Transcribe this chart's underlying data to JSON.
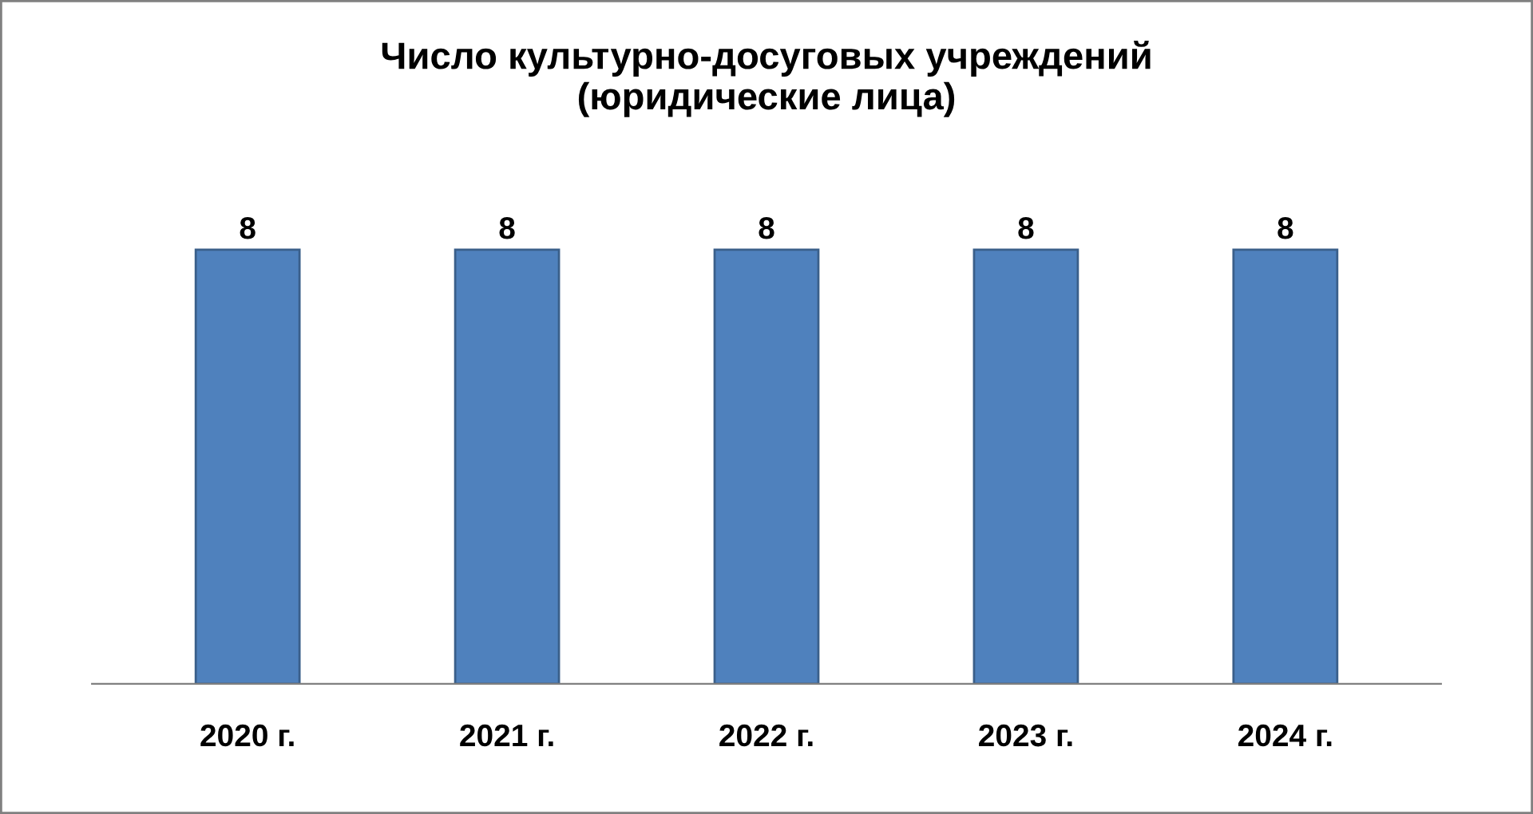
{
  "chart_data": {
    "type": "bar",
    "title": "Число культурно-досуговых учреждений\n(юридические лица)",
    "categories": [
      "2020 г.",
      "2021 г.",
      "2022 г.",
      "2023 г.",
      "2024 г."
    ],
    "values": [
      8,
      8,
      8,
      8,
      8
    ],
    "color": "#4f81bd",
    "data_labels": true,
    "tick_labels": "x",
    "grid": false
  }
}
